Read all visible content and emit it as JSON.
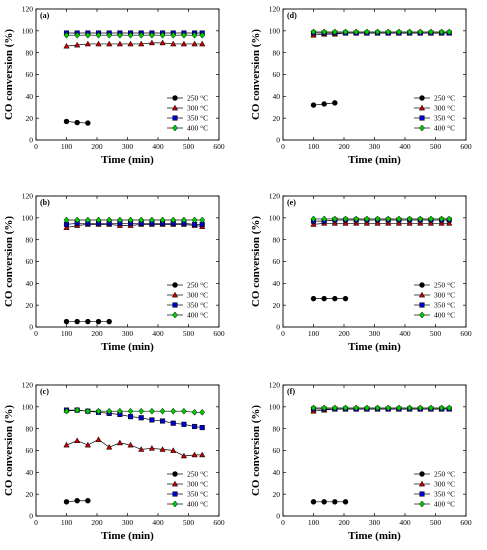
{
  "chart_data": [
    {
      "panel": "(a)",
      "type": "line",
      "xlabel": "Time (min)",
      "ylabel": "CO conversion (%)",
      "xlim": [
        0,
        600
      ],
      "ylim": [
        0,
        120
      ],
      "xticks": [
        0,
        100,
        200,
        300,
        400,
        500,
        600
      ],
      "yticks": [
        0,
        20,
        40,
        60,
        80,
        100,
        120
      ],
      "legend_position": "bottom-right",
      "series": [
        {
          "name": "250 °C",
          "marker": "circle",
          "color": "#000000",
          "x": [
            100,
            135,
            170
          ],
          "y": [
            17,
            16,
            15.5
          ]
        },
        {
          "name": "300 °C",
          "marker": "triangle",
          "color": "#c00000",
          "x": [
            100,
            135,
            170,
            205,
            240,
            275,
            310,
            345,
            380,
            415,
            450,
            485,
            520,
            545
          ],
          "y": [
            86,
            87,
            88,
            88,
            88,
            88,
            88,
            88,
            89,
            89,
            88,
            88,
            88,
            88
          ]
        },
        {
          "name": "350 °C",
          "marker": "square",
          "color": "#0000cc",
          "x": [
            100,
            135,
            170,
            205,
            240,
            275,
            310,
            345,
            380,
            415,
            450,
            485,
            520,
            545
          ],
          "y": [
            98,
            98,
            98,
            98,
            98,
            98,
            98,
            98,
            98,
            98,
            98,
            98,
            98,
            98
          ]
        },
        {
          "name": "400 °C",
          "marker": "diamond",
          "color": "#00cc00",
          "x": [
            100,
            135,
            170,
            205,
            240,
            275,
            310,
            345,
            380,
            415,
            450,
            485,
            520,
            545
          ],
          "y": [
            96,
            96,
            96,
            96,
            96,
            96,
            96,
            96,
            96,
            96,
            96,
            96,
            96,
            96
          ]
        }
      ]
    },
    {
      "panel": "(b)",
      "type": "line",
      "xlabel": "Time (min)",
      "ylabel": "CO conversion (%)",
      "xlim": [
        0,
        600
      ],
      "ylim": [
        0,
        120
      ],
      "xticks": [
        0,
        100,
        200,
        300,
        400,
        500,
        600
      ],
      "yticks": [
        0,
        20,
        40,
        60,
        80,
        100,
        120
      ],
      "legend_position": "bottom-right",
      "series": [
        {
          "name": "250 °C",
          "marker": "circle",
          "color": "#000000",
          "x": [
            100,
            135,
            170,
            205,
            240
          ],
          "y": [
            5,
            5,
            5,
            5,
            5
          ]
        },
        {
          "name": "300 °C",
          "marker": "triangle",
          "color": "#c00000",
          "x": [
            100,
            135,
            170,
            205,
            240,
            275,
            310,
            345,
            380,
            415,
            450,
            485,
            520,
            545
          ],
          "y": [
            91,
            93,
            94,
            94,
            94,
            93,
            93,
            94,
            94,
            94,
            94,
            94,
            93,
            92
          ]
        },
        {
          "name": "350 °C",
          "marker": "square",
          "color": "#0000cc",
          "x": [
            100,
            135,
            170,
            205,
            240,
            275,
            310,
            345,
            380,
            415,
            450,
            485,
            520,
            545
          ],
          "y": [
            94,
            95,
            95,
            95,
            95,
            95,
            95,
            95,
            95,
            95,
            95,
            95,
            94,
            94
          ]
        },
        {
          "name": "400 °C",
          "marker": "diamond",
          "color": "#00cc00",
          "x": [
            100,
            135,
            170,
            205,
            240,
            275,
            310,
            345,
            380,
            415,
            450,
            485,
            520,
            545
          ],
          "y": [
            98,
            98,
            98,
            98,
            98,
            98,
            98,
            98,
            98,
            98,
            98,
            98,
            98,
            98
          ]
        }
      ]
    },
    {
      "panel": "(c)",
      "type": "line",
      "xlabel": "Time (min)",
      "ylabel": "CO conversion (%)",
      "xlim": [
        0,
        600
      ],
      "ylim": [
        0,
        120
      ],
      "xticks": [
        0,
        100,
        200,
        300,
        400,
        500,
        600
      ],
      "yticks": [
        0,
        20,
        40,
        60,
        80,
        100,
        120
      ],
      "legend_position": "bottom-right",
      "series": [
        {
          "name": "250 °C",
          "marker": "circle",
          "color": "#000000",
          "x": [
            100,
            135,
            170
          ],
          "y": [
            13,
            14,
            14
          ]
        },
        {
          "name": "300 °C",
          "marker": "triangle",
          "color": "#c00000",
          "x": [
            100,
            135,
            170,
            205,
            240,
            275,
            310,
            345,
            380,
            415,
            450,
            485,
            520,
            545
          ],
          "y": [
            65,
            69,
            65,
            70,
            63,
            67,
            65,
            61,
            62,
            61,
            60,
            55,
            56,
            56
          ]
        },
        {
          "name": "350 °C",
          "marker": "square",
          "color": "#0000cc",
          "x": [
            100,
            135,
            170,
            205,
            240,
            275,
            310,
            345,
            380,
            415,
            450,
            485,
            520,
            545
          ],
          "y": [
            97,
            97,
            96,
            95,
            94,
            93,
            91,
            90,
            88,
            87,
            85,
            84,
            82,
            81
          ]
        },
        {
          "name": "400 °C",
          "marker": "diamond",
          "color": "#00cc00",
          "x": [
            100,
            135,
            170,
            205,
            240,
            275,
            310,
            345,
            380,
            415,
            450,
            485,
            520,
            545
          ],
          "y": [
            96,
            97,
            96,
            96,
            96,
            96,
            96,
            96,
            96,
            96,
            96,
            96,
            95,
            95
          ]
        }
      ]
    },
    {
      "panel": "(d)",
      "type": "line",
      "xlabel": "Time (min)",
      "ylabel": "CO conversion (%)",
      "xlim": [
        0,
        600
      ],
      "ylim": [
        0,
        120
      ],
      "xticks": [
        0,
        100,
        200,
        300,
        400,
        500,
        600
      ],
      "yticks": [
        0,
        20,
        40,
        60,
        80,
        100,
        120
      ],
      "legend_position": "bottom-right",
      "series": [
        {
          "name": "250 °C",
          "marker": "circle",
          "color": "#000000",
          "x": [
            100,
            135,
            170
          ],
          "y": [
            32,
            33,
            34
          ]
        },
        {
          "name": "300 °C",
          "marker": "triangle",
          "color": "#c00000",
          "x": [
            100,
            135,
            170,
            205,
            240,
            275,
            310,
            345,
            380,
            415,
            450,
            485,
            520,
            545
          ],
          "y": [
            96,
            97,
            97,
            98,
            98,
            98,
            98,
            98,
            98,
            98,
            98,
            98,
            98,
            98
          ]
        },
        {
          "name": "350 °C",
          "marker": "square",
          "color": "#0000cc",
          "x": [
            100,
            135,
            170,
            205,
            240,
            275,
            310,
            345,
            380,
            415,
            450,
            485,
            520,
            545
          ],
          "y": [
            98,
            98,
            98,
            98,
            98,
            98,
            98,
            98,
            98,
            98,
            98,
            98,
            98,
            98
          ]
        },
        {
          "name": "400 °C",
          "marker": "diamond",
          "color": "#00cc00",
          "x": [
            100,
            135,
            170,
            205,
            240,
            275,
            310,
            345,
            380,
            415,
            450,
            485,
            520,
            545
          ],
          "y": [
            99,
            99,
            99,
            99,
            99,
            99,
            99,
            99,
            99,
            99,
            99,
            99,
            99,
            99
          ]
        }
      ]
    },
    {
      "panel": "(e)",
      "type": "line",
      "xlabel": "Time (min)",
      "ylabel": "CO conversion (%)",
      "xlim": [
        0,
        600
      ],
      "ylim": [
        0,
        120
      ],
      "xticks": [
        0,
        100,
        200,
        300,
        400,
        500,
        600
      ],
      "yticks": [
        0,
        20,
        40,
        60,
        80,
        100,
        120
      ],
      "legend_position": "bottom-right",
      "series": [
        {
          "name": "250 °C",
          "marker": "circle",
          "color": "#000000",
          "x": [
            100,
            135,
            170,
            205
          ],
          "y": [
            26,
            26,
            26,
            26
          ]
        },
        {
          "name": "300 °C",
          "marker": "triangle",
          "color": "#c00000",
          "x": [
            100,
            135,
            170,
            205,
            240,
            275,
            310,
            345,
            380,
            415,
            450,
            485,
            520,
            545
          ],
          "y": [
            94,
            95,
            95,
            95,
            95,
            95,
            95,
            95,
            95,
            95,
            95,
            95,
            95,
            95
          ]
        },
        {
          "name": "350 °C",
          "marker": "square",
          "color": "#0000cc",
          "x": [
            100,
            135,
            170,
            205,
            240,
            275,
            310,
            345,
            380,
            415,
            450,
            485,
            520,
            545
          ],
          "y": [
            97,
            97,
            98,
            98,
            98,
            98,
            98,
            98,
            98,
            98,
            98,
            98,
            98,
            98
          ]
        },
        {
          "name": "400 °C",
          "marker": "diamond",
          "color": "#00cc00",
          "x": [
            100,
            135,
            170,
            205,
            240,
            275,
            310,
            345,
            380,
            415,
            450,
            485,
            520,
            545
          ],
          "y": [
            99,
            99,
            99,
            99,
            99,
            99,
            99,
            99,
            99,
            99,
            99,
            99,
            99,
            99
          ]
        }
      ]
    },
    {
      "panel": "(f)",
      "type": "line",
      "xlabel": "Time (min)",
      "ylabel": "CO conversion (%)",
      "xlim": [
        0,
        600
      ],
      "ylim": [
        0,
        120
      ],
      "xticks": [
        0,
        100,
        200,
        300,
        400,
        500,
        600
      ],
      "yticks": [
        0,
        20,
        40,
        60,
        80,
        100,
        120
      ],
      "legend_position": "bottom-right",
      "series": [
        {
          "name": "250 °C",
          "marker": "circle",
          "color": "#000000",
          "x": [
            100,
            135,
            170,
            205
          ],
          "y": [
            13,
            13,
            13,
            13
          ]
        },
        {
          "name": "300 °C",
          "marker": "triangle",
          "color": "#c00000",
          "x": [
            100,
            135,
            170,
            205,
            240,
            275,
            310,
            345,
            380,
            415,
            450,
            485,
            520,
            545
          ],
          "y": [
            96,
            97,
            98,
            98,
            98,
            98,
            98,
            98,
            98,
            98,
            98,
            98,
            98,
            98
          ]
        },
        {
          "name": "350 °C",
          "marker": "square",
          "color": "#0000cc",
          "x": [
            100,
            135,
            170,
            205,
            240,
            275,
            310,
            345,
            380,
            415,
            450,
            485,
            520,
            545
          ],
          "y": [
            98,
            98,
            98,
            98,
            98,
            98,
            98,
            98,
            98,
            98,
            98,
            98,
            98,
            98
          ]
        },
        {
          "name": "400 °C",
          "marker": "diamond",
          "color": "#00cc00",
          "x": [
            100,
            135,
            170,
            205,
            240,
            275,
            310,
            345,
            380,
            415,
            450,
            485,
            520,
            545
          ],
          "y": [
            99,
            99,
            99,
            99,
            99,
            99,
            99,
            99,
            99,
            99,
            99,
            99,
            99,
            99
          ]
        }
      ]
    }
  ]
}
